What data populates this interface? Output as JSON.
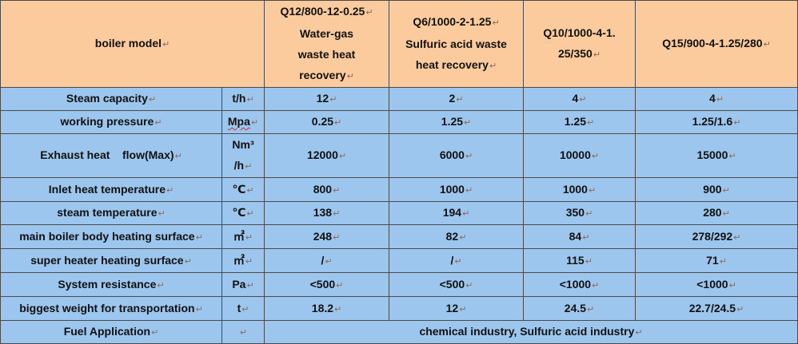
{
  "header": {
    "label": "boiler model",
    "models": [
      "Q12/800-12-0.25 Water-gas waste heat recovery",
      "Q6/1000-2-1.25 Sulfuric acid waste heat recovery",
      "Q10/1000-4-1.25/350",
      "Q15/900-4-1.25/280"
    ],
    "model_lines": [
      [
        "Q12/800-12-0.25",
        "Water-gas",
        "waste heat",
        "recovery"
      ],
      [
        "Q6/1000-2-1.25",
        "Sulfuric acid waste",
        "heat recovery"
      ],
      [
        "Q10/1000-4-1.",
        "25/350"
      ],
      [
        "Q15/900-4-1.25/280"
      ]
    ]
  },
  "rows": [
    {
      "label": "Steam capacity",
      "unit": "t/h",
      "values": [
        "12",
        "2",
        "4",
        "4"
      ]
    },
    {
      "label": "working pressure",
      "unit": "Mpa",
      "values": [
        "0.25",
        "1.25",
        "1.25",
        "1.25/1.6"
      ]
    },
    {
      "label": "Exhaust heat    flow(Max)",
      "unit": "Nm³ /h",
      "unit_lines": [
        "Nm³",
        "/h"
      ],
      "values": [
        "12000",
        "6000",
        "10000",
        "15000"
      ]
    },
    {
      "label": "Inlet heat temperature",
      "unit": "℃",
      "values": [
        "800",
        "1000",
        "1000",
        "900"
      ]
    },
    {
      "label": "steam temperature",
      "unit": "℃",
      "values": [
        "138",
        "194",
        "350",
        "280"
      ]
    },
    {
      "label": "main boiler body heating surface",
      "unit": "㎡",
      "values": [
        "248",
        "82",
        "84",
        "278/292"
      ]
    },
    {
      "label": "super heater heating surface",
      "unit": "㎡",
      "values": [
        "/",
        "/",
        "115",
        "71"
      ]
    },
    {
      "label": "System resistance",
      "unit": "Pa",
      "values": [
        "<500",
        "<500",
        "<1000",
        "<1000"
      ]
    },
    {
      "label": "biggest weight for transportation",
      "unit": "t",
      "values": [
        "18.2",
        "12",
        "24.5",
        "22.7/24.5"
      ]
    }
  ],
  "footer": {
    "label": "Fuel Application",
    "unit": "",
    "value": "chemical industry, Sulfuric acid industry"
  },
  "colors": {
    "header_bg": "#fbcb9d",
    "body_bg": "#9cc6ee",
    "border": "#4a4a4a"
  },
  "paragraph_mark": "↵"
}
